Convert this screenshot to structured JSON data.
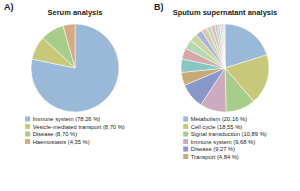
{
  "chart_data": [
    {
      "type": "pie",
      "title": "Serum analysis",
      "annotations": [
        "A)"
      ],
      "categories": [
        "Immune system (78,26 %)",
        "Vesicle-mediated transport (8,70 %)",
        "Disease (8,70 %)",
        "Haemostasis (4,35 %)"
      ],
      "values": [
        78.26,
        8.7,
        8.7,
        4.35
      ],
      "colors": [
        "#9ab8d8",
        "#c8c87a",
        "#a8cc8a",
        "#d4aa84"
      ],
      "legend": "bottom"
    },
    {
      "type": "pie",
      "title": "Sputum supernatant analysis",
      "annotations": [
        "B)"
      ],
      "categories": [
        "Metabolism (20,16 %)",
        "Cell cycle (18,55 %)",
        "Signal transduction (10,89 %)",
        "Immune system (9,68 %)",
        "Disease (9,27 %)",
        "Transport (4,84 %)",
        null,
        null,
        null,
        null,
        null,
        null,
        null,
        null,
        null,
        null,
        null,
        null,
        null,
        null
      ],
      "values": [
        20.16,
        18.55,
        10.89,
        9.68,
        9.27,
        4.84,
        4.9392,
        4.0131,
        3.3957,
        2.9327,
        2.4696,
        2.0066,
        1.6979,
        1.3892,
        1.0805,
        0.8489,
        0.6483,
        0.4939,
        0.3859,
        0.3087
      ],
      "colors": [
        "#9ab8d8",
        "#c8c87a",
        "#a8cc8a",
        "#ccaac0",
        "#8898c8",
        "#c8aa7a",
        "#88c8c4",
        "#d4a8a8",
        "#b4d8b0",
        "#ccd4a0",
        "#a8b4d4",
        "#d8c8a8",
        "#c0d8bc",
        "#e8b8b0",
        "#b8c8e0",
        "#c8d8b0",
        "#e8c8a8",
        "#b4ccc8",
        "#d8b8c0",
        "#c4cce4"
      ],
      "legend": "bottom"
    }
  ]
}
